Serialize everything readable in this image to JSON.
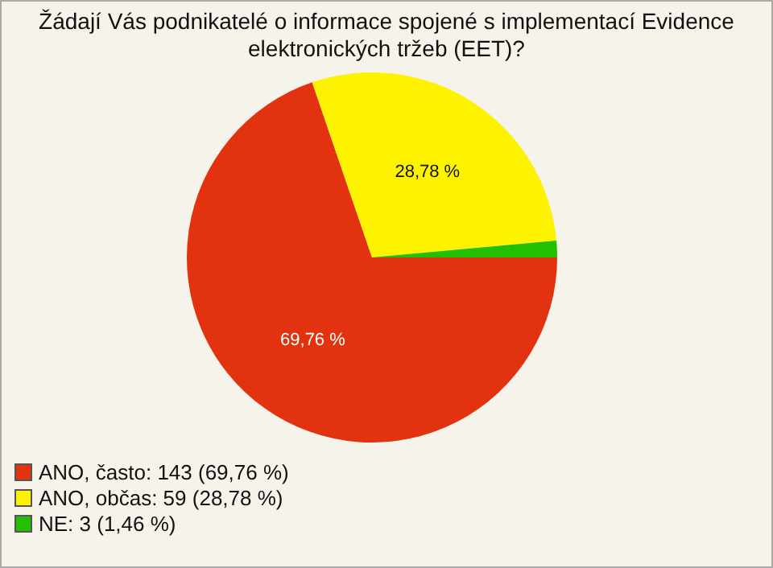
{
  "chart_data": {
    "type": "pie",
    "title": "Žádají Vás podnikatelé o informace spojené s implementací Evidence elektronických tržeb (EET)?",
    "categories": [
      "ANO, často: 143 (69,76 %)",
      "ANO, občas: 59 (28,78 %)",
      "NE: 3 (1,46 %)"
    ],
    "values": [
      69.76,
      28.78,
      1.46
    ],
    "colors": [
      "#e2320f",
      "#fdf200",
      "#22c000"
    ],
    "value_labels": [
      "69,76 %",
      "28,78 %",
      null
    ],
    "legend": "bottom"
  }
}
